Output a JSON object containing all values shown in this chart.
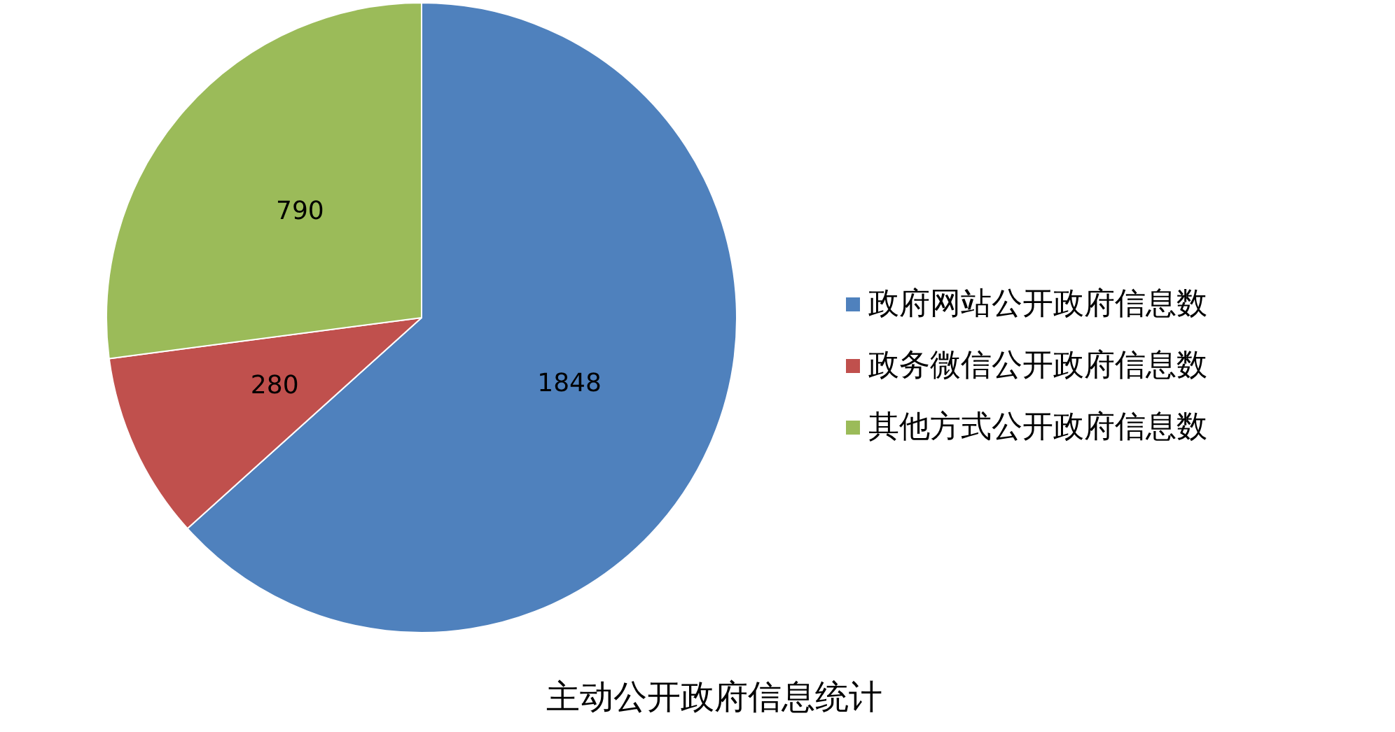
{
  "chart_data": {
    "type": "pie",
    "title": "主动公开政府信息统计",
    "categories": [
      "政府网站公开政府信息数",
      "政务微信公开政府信息数",
      "其他方式公开政府信息数"
    ],
    "values": [
      1848,
      280,
      790
    ],
    "colors": [
      "#4f81bd",
      "#c0504d",
      "#9bbb59"
    ],
    "data_labels": true,
    "legend": "right"
  }
}
